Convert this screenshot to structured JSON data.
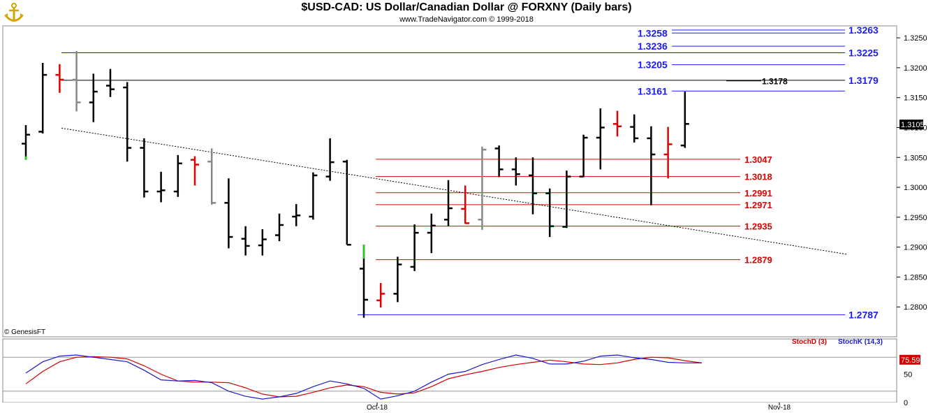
{
  "header": {
    "title": "$USD-CAD:  US Dollar/Canadian Dollar @ FORXNY  (Daily bars)",
    "subtitle": "www.TradeNavigator.com © 1999-2018",
    "logo_icon": "anchor-logo-icon"
  },
  "colors": {
    "blue_level": "#1a1aff",
    "red_level": "#e00000",
    "black_level": "#000000",
    "up_bar": "#000000",
    "down_bar_red": "#e00000",
    "neutral_bar_gray": "#888888",
    "highlight_bar_green": "#22cc22",
    "stoch_d": "#d40000",
    "stoch_k": "#1a1acc"
  },
  "chart_data": [
    {
      "type": "ohlc",
      "title": "$USD-CAD:  US Dollar/Canadian Dollar @ FORXNY  (Daily bars)",
      "ylim": [
        1.275,
        1.327
      ],
      "y_ticks": [
        "1.2800",
        "1.2850",
        "1.2900",
        "1.2950",
        "1.3000",
        "1.3050",
        "1.3100",
        "1.3150",
        "1.3200",
        "1.3250"
      ],
      "x_ticks": [
        "Oct-18",
        "Nov-18"
      ],
      "last_price": "1.3105",
      "copyright": "© GenesisFT",
      "bars": [
        {
          "o": 1.3073,
          "h": 1.3104,
          "l": 1.3046,
          "c": 1.3088,
          "color": "black",
          "low_mark": "green"
        },
        {
          "o": 1.3093,
          "h": 1.3208,
          "l": 1.309,
          "c": 1.3188,
          "color": "black"
        },
        {
          "o": 1.3188,
          "h": 1.3206,
          "l": 1.3158,
          "c": 1.318,
          "color": "red"
        },
        {
          "o": 1.318,
          "h": 1.3228,
          "l": 1.3127,
          "c": 1.3142,
          "color": "gray"
        },
        {
          "o": 1.3142,
          "h": 1.319,
          "l": 1.3109,
          "c": 1.316,
          "color": "black"
        },
        {
          "o": 1.317,
          "h": 1.3198,
          "l": 1.3151,
          "c": 1.3164,
          "color": "black"
        },
        {
          "o": 1.3167,
          "h": 1.3176,
          "l": 1.3043,
          "c": 1.3066,
          "color": "black"
        },
        {
          "o": 1.3066,
          "h": 1.3082,
          "l": 1.2983,
          "c": 1.2993,
          "color": "black"
        },
        {
          "o": 1.2993,
          "h": 1.3026,
          "l": 1.2975,
          "c": 1.2995,
          "color": "black"
        },
        {
          "o": 1.2993,
          "h": 1.3054,
          "l": 1.2984,
          "c": 1.304,
          "color": "black"
        },
        {
          "o": 1.3046,
          "h": 1.3052,
          "l": 1.3003,
          "c": 1.3038,
          "color": "red"
        },
        {
          "o": 1.3043,
          "h": 1.3065,
          "l": 1.2971,
          "c": 1.2974,
          "color": "gray"
        },
        {
          "o": 1.2974,
          "h": 1.3015,
          "l": 1.2898,
          "c": 1.2917,
          "color": "black"
        },
        {
          "o": 1.2914,
          "h": 1.2935,
          "l": 1.2886,
          "c": 1.2902,
          "color": "black"
        },
        {
          "o": 1.2903,
          "h": 1.293,
          "l": 1.2886,
          "c": 1.2913,
          "color": "black"
        },
        {
          "o": 1.292,
          "h": 1.2956,
          "l": 1.291,
          "c": 1.2937,
          "color": "black"
        },
        {
          "o": 1.2951,
          "h": 1.2972,
          "l": 1.2935,
          "c": 1.2953,
          "color": "black"
        },
        {
          "o": 1.2951,
          "h": 1.3025,
          "l": 1.2946,
          "c": 1.302,
          "color": "black"
        },
        {
          "o": 1.3018,
          "h": 1.3082,
          "l": 1.3011,
          "c": 1.3042,
          "color": "black"
        },
        {
          "o": 1.3043,
          "h": 1.3046,
          "l": 1.2904,
          "c": 1.2904,
          "color": "black"
        },
        {
          "o": 1.2864,
          "h": 1.2904,
          "l": 1.2782,
          "c": 1.2812,
          "color": "black",
          "high_mark": "green"
        },
        {
          "o": 1.2811,
          "h": 1.284,
          "l": 1.2799,
          "c": 1.2822,
          "color": "red"
        },
        {
          "o": 1.2822,
          "h": 1.2884,
          "l": 1.2808,
          "c": 1.2871,
          "color": "black"
        },
        {
          "o": 1.2867,
          "h": 1.2938,
          "l": 1.286,
          "c": 1.2924,
          "color": "black"
        },
        {
          "o": 1.2924,
          "h": 1.2956,
          "l": 1.289,
          "c": 1.2936,
          "color": "black"
        },
        {
          "o": 1.2946,
          "h": 1.3012,
          "l": 1.2935,
          "c": 1.2965,
          "color": "black"
        },
        {
          "o": 1.2964,
          "h": 1.3003,
          "l": 1.2939,
          "c": 1.294,
          "color": "red"
        },
        {
          "o": 1.2946,
          "h": 1.3068,
          "l": 1.2929,
          "c": 1.3063,
          "color": "gray"
        },
        {
          "o": 1.3065,
          "h": 1.307,
          "l": 1.3017,
          "c": 1.303,
          "color": "black"
        },
        {
          "o": 1.303,
          "h": 1.305,
          "l": 1.3003,
          "c": 1.3022,
          "color": "black"
        },
        {
          "o": 1.302,
          "h": 1.305,
          "l": 1.2955,
          "c": 1.299,
          "color": "black"
        },
        {
          "o": 1.299,
          "h": 1.2998,
          "l": 1.2917,
          "c": 1.2935,
          "color": "black"
        },
        {
          "o": 1.2934,
          "h": 1.3028,
          "l": 1.2932,
          "c": 1.3018,
          "color": "black"
        },
        {
          "o": 1.3018,
          "h": 1.3088,
          "l": 1.3017,
          "c": 1.3083,
          "color": "black"
        },
        {
          "o": 1.3083,
          "h": 1.3132,
          "l": 1.303,
          "c": 1.31,
          "color": "black"
        },
        {
          "o": 1.3106,
          "h": 1.3128,
          "l": 1.3085,
          "c": 1.3102,
          "color": "red"
        },
        {
          "o": 1.3101,
          "h": 1.3122,
          "l": 1.3075,
          "c": 1.3082,
          "color": "black"
        },
        {
          "o": 1.3082,
          "h": 1.3102,
          "l": 1.297,
          "c": 1.3055,
          "color": "black"
        },
        {
          "o": 1.3055,
          "h": 1.3101,
          "l": 1.3015,
          "c": 1.3072,
          "color": "red"
        },
        {
          "o": 1.307,
          "h": 1.316,
          "l": 1.3066,
          "c": 1.3106,
          "color": "black"
        }
      ],
      "resistance_levels": [
        {
          "value": 1.3263,
          "label": "1.3263",
          "color": "blue"
        },
        {
          "value": 1.3225,
          "label": "1.3225",
          "color": "blue"
        },
        {
          "value": 1.3179,
          "label": "1.3179",
          "color": "blue"
        },
        {
          "value": 1.2787,
          "label": "1.2787",
          "color": "blue"
        }
      ],
      "inner_blue_levels": [
        {
          "value": 1.3258,
          "label": "1.3258"
        },
        {
          "value": 1.3236,
          "label": "1.3236"
        },
        {
          "value": 1.3205,
          "label": "1.3205"
        },
        {
          "value": 1.3161,
          "label": "1.3161"
        }
      ],
      "black_level": {
        "value": 1.3178,
        "label": "1.3178"
      },
      "support_levels": [
        {
          "value": 1.3047,
          "label": "1.3047"
        },
        {
          "value": 1.3018,
          "label": "1.3018"
        },
        {
          "value": 1.2991,
          "label": "1.2991"
        },
        {
          "value": 1.2971,
          "label": "1.2971"
        },
        {
          "value": 1.2935,
          "label": "1.2935"
        },
        {
          "value": 1.2879,
          "label": "1.2879"
        }
      ],
      "trendline": {
        "from_bar": 1,
        "from_value": 1.3099,
        "to_bar": 48,
        "to_value": 1.2888,
        "style": "dotted"
      }
    },
    {
      "type": "line",
      "ylim": [
        0,
        100
      ],
      "y_ticks": [
        "0",
        "50"
      ],
      "last_value": "75.59",
      "series": [
        {
          "name": "StochD (3)",
          "color": "red",
          "values": [
            33,
            55,
            72,
            80,
            81,
            80,
            77,
            65,
            50,
            38,
            36,
            36,
            35,
            26,
            15,
            10,
            11,
            18,
            26,
            31,
            28,
            18,
            15,
            17,
            28,
            42,
            49,
            55,
            62,
            67,
            71,
            75,
            72,
            68,
            67,
            70,
            76,
            80,
            79,
            74,
            70
          ]
        },
        {
          "name": "StochK (14,3)",
          "color": "blue",
          "values": [
            52,
            72,
            82,
            84,
            80,
            76,
            72,
            57,
            40,
            38,
            39,
            35,
            20,
            11,
            6,
            10,
            16,
            28,
            38,
            33,
            25,
            6,
            12,
            20,
            36,
            50,
            55,
            67,
            76,
            84,
            78,
            68,
            68,
            73,
            82,
            84,
            79,
            76,
            71,
            70,
            70
          ]
        }
      ]
    }
  ]
}
